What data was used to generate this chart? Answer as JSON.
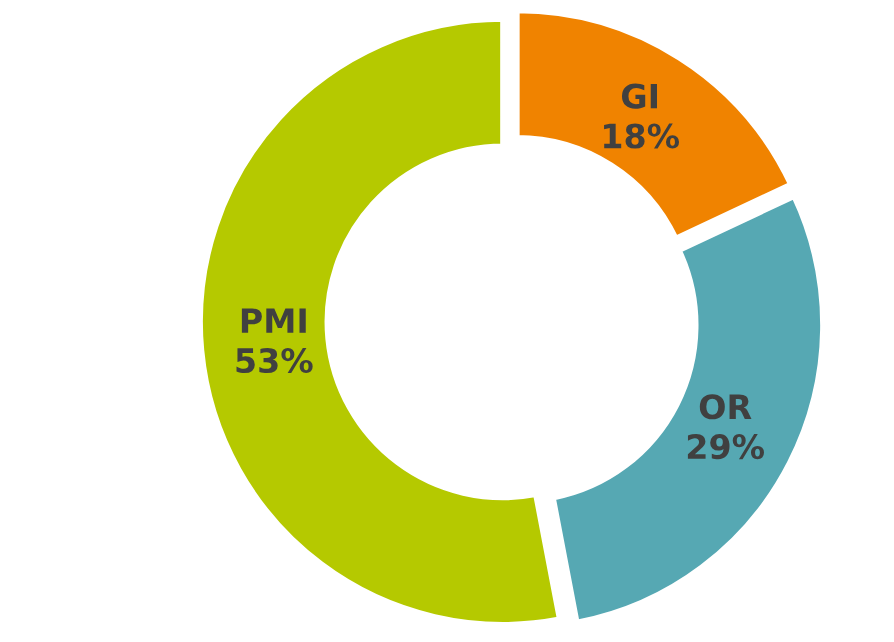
{
  "chart_data": {
    "type": "donut",
    "categories": [
      "GI",
      "OR",
      "PMI"
    ],
    "values": [
      18,
      29,
      53
    ],
    "colors": [
      "#f08300",
      "#56a8b3",
      "#b5c900"
    ],
    "value_labels": [
      "18%",
      "29%",
      "53%"
    ],
    "legend": false
  }
}
